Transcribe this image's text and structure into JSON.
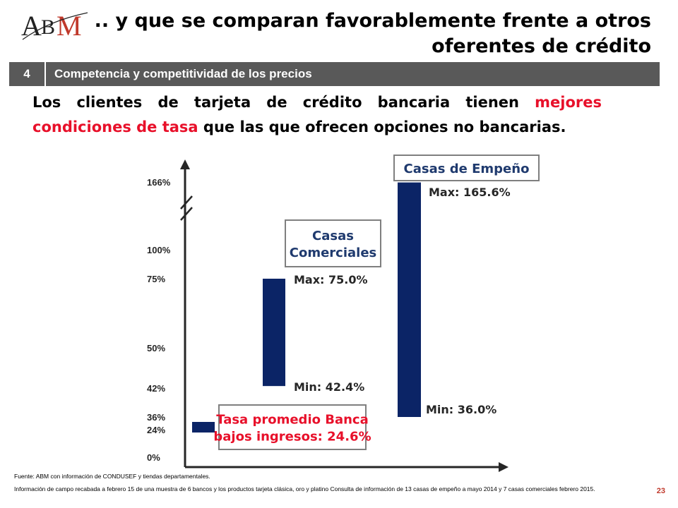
{
  "header": {
    "logo": "ABM",
    "title": ".. y que se comparan favorablemente frente a otros oferentes de crédito"
  },
  "section": {
    "number": "4",
    "title": "Competencia y competitividad de los precios"
  },
  "lead": {
    "part1": "Los clientes de tarjeta de crédito bancaria tienen ",
    "highlight": "mejores condiciones de tasa",
    "part2": " que las que ofrecen opciones no bancarias."
  },
  "colors": {
    "bar": "#0b2466",
    "highlight": "#e8102a",
    "box_title": "#1f3a6e",
    "section_bg": "#595959"
  },
  "chart_data": {
    "type": "bar",
    "y_tick_labels": [
      "166%",
      "100%",
      "75%",
      "50%",
      "42%",
      "36%",
      "24%",
      "0%"
    ],
    "axis_break": true,
    "series": [
      {
        "name": "Tasa promedio Banca bajos ingresos",
        "low": 24.6,
        "high": 24.6,
        "label_lines": [
          "Tasa promedio Banca",
          "bajos ingresos: 24.6%"
        ]
      },
      {
        "name": "Casas Comerciales",
        "low": 42.4,
        "high": 75.0,
        "label_lines": [
          "Casas",
          "Comerciales"
        ],
        "max_label": "Max: 75.0%",
        "min_label": "Min: 42.4%"
      },
      {
        "name": "Casas de Empeño",
        "low": 36.0,
        "high": 165.6,
        "label_lines": [
          "Casas de Empeño"
        ],
        "max_label": "Max:  165.6%",
        "min_label": "Min: 36.0%"
      }
    ]
  },
  "footer": {
    "source": "Fuente:  ABM con información de CONDUSEF y tiendas departamentales.",
    "note": "Información de campo recabada a febrero 15 de una muestra de 6 bancos y los productos tarjeta clásica, oro y platino Consulta de información de 13 casas de empeño a mayo 2014 y 7 casas comerciales febrero 2015.",
    "page": "23"
  }
}
